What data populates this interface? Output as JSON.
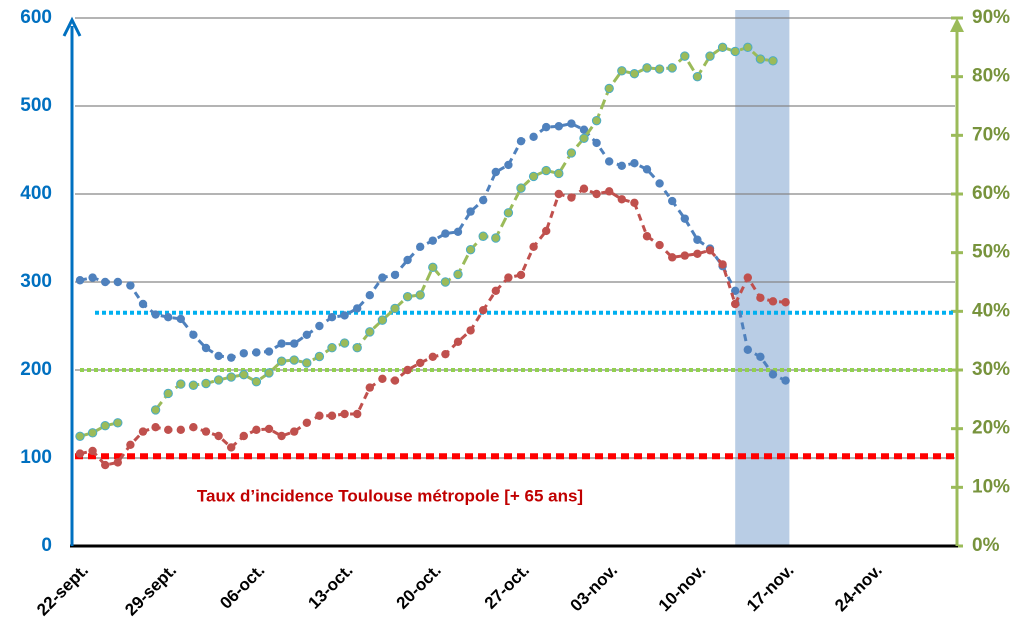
{
  "chart_data": {
    "type": "line",
    "categories": [
      "22-sept.",
      null,
      null,
      null,
      null,
      null,
      null,
      "29-sept.",
      null,
      null,
      null,
      null,
      null,
      null,
      "06-oct.",
      null,
      null,
      null,
      null,
      null,
      null,
      "13-oct.",
      null,
      null,
      null,
      null,
      null,
      null,
      "20-oct.",
      null,
      null,
      null,
      null,
      null,
      null,
      "27-oct.",
      null,
      null,
      null,
      null,
      null,
      null,
      "03-nov.",
      null,
      null,
      null,
      null,
      null,
      null,
      "10-nov.",
      null,
      null,
      null,
      null,
      null,
      null,
      "17-nov.",
      null,
      null,
      null,
      null,
      null,
      null,
      "24-nov.",
      null,
      null,
      null,
      null,
      null,
      null
    ],
    "series": [
      {
        "color": "#4f81bd",
        "axis": "y",
        "values": [
          302,
          305,
          300,
          300,
          296,
          275,
          263,
          260,
          258,
          240,
          225,
          216,
          214,
          219,
          220,
          221,
          230,
          230,
          240,
          250,
          260,
          262,
          270,
          285,
          305,
          308,
          325,
          340,
          347,
          355,
          357,
          380,
          393,
          425,
          433,
          460,
          465,
          476,
          477,
          480,
          473,
          458,
          437,
          432,
          435,
          428,
          412,
          392,
          372,
          348,
          338,
          318,
          290,
          223,
          215,
          195,
          188,
          null,
          null,
          null,
          null,
          null,
          null,
          null,
          null,
          null,
          null,
          null,
          null,
          null
        ]
      },
      {
        "color": "#c0504d",
        "axis": "y",
        "values": [
          105,
          108,
          92,
          95,
          115,
          130,
          135,
          132,
          132,
          135,
          130,
          125,
          112,
          125,
          132,
          133,
          125,
          130,
          140,
          148,
          148,
          150,
          150,
          180,
          190,
          188,
          200,
          208,
          215,
          218,
          232,
          245,
          268,
          290,
          305,
          308,
          340,
          358,
          400,
          396,
          406,
          400,
          403,
          394,
          390,
          352,
          342,
          328,
          330,
          332,
          336,
          320,
          275,
          305,
          282,
          278,
          277,
          null,
          null,
          null,
          null,
          null,
          null,
          null,
          null,
          null,
          null,
          null,
          null,
          null
        ]
      },
      {
        "color": "#9bbb59",
        "axis": "y2",
        "values": [
          18.7,
          19.3,
          20.5,
          21,
          null,
          null,
          23.2,
          26,
          27.6,
          27.4,
          27.7,
          28.3,
          28.8,
          29.2,
          28,
          29.5,
          31.5,
          31.7,
          31.2,
          32.3,
          33.8,
          34.6,
          33.8,
          36.5,
          38.5,
          40.5,
          42.5,
          42.8,
          47.5,
          45,
          46.3,
          50.5,
          52.8,
          52.5,
          56.8,
          61,
          63,
          64,
          63.5,
          67,
          69.5,
          72.5,
          78,
          81,
          80.5,
          81.5,
          81.3,
          81.5,
          83.5,
          80,
          83.5,
          85,
          84.3,
          85,
          83,
          82.7,
          null,
          null,
          null,
          null,
          null,
          null,
          null,
          null,
          null,
          null,
          null,
          null,
          null,
          null
        ]
      }
    ],
    "ylim": [
      0,
      600
    ],
    "yticks": [
      0,
      100,
      200,
      300,
      400,
      500,
      600
    ],
    "y2lim": [
      0,
      90
    ],
    "y2ticks": [
      {
        "value": 0,
        "label": "0%"
      },
      {
        "value": 10,
        "label": "10%"
      },
      {
        "value": 20,
        "label": "20%"
      },
      {
        "value": 30,
        "label": "30%"
      },
      {
        "value": 40,
        "label": "40%"
      },
      {
        "value": 50,
        "label": "50%"
      },
      {
        "value": 60,
        "label": "60%"
      },
      {
        "value": 70,
        "label": "70%"
      },
      {
        "value": 80,
        "label": "80%"
      },
      {
        "value": 90,
        "label": "90%"
      }
    ],
    "grid": true,
    "reference_lines": [
      {
        "value": 265,
        "axis": "y",
        "color": "#00b0f0"
      },
      {
        "value": 30,
        "axis": "y2",
        "color": "#92d050"
      },
      {
        "value": 102,
        "axis": "y",
        "color": "#ff0000"
      }
    ],
    "highlight": [
      52,
      56.3
    ],
    "annotation": "Taux d’incidence Toulouse métropole [+ 65 ans]"
  }
}
